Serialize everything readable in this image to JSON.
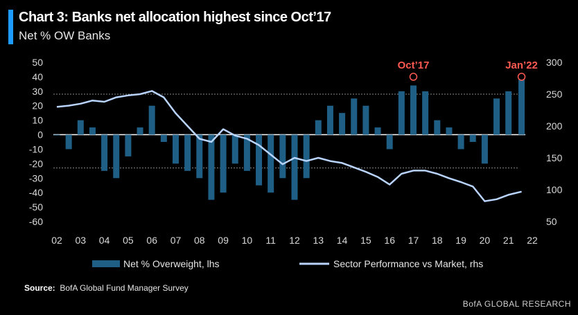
{
  "header": {
    "title": "Chart 3: Banks net allocation highest since Oct’17",
    "subtitle": "Net % OW Banks"
  },
  "footer": {
    "source_label": "Source:",
    "source_text": "BofA Global Fund Manager Survey",
    "brand": "BofA GLOBAL RESEARCH"
  },
  "colors": {
    "bars": "#1f5f86",
    "line": "#b9d4ff",
    "accent": "#1e9bff",
    "annotation": "#ff5a52"
  },
  "chart_data": {
    "type": "bar",
    "title": "Chart 3: Banks net allocation highest since Oct’17",
    "subtitle": "Net % OW Banks",
    "x_ticks": [
      "02",
      "03",
      "04",
      "05",
      "06",
      "07",
      "08",
      "09",
      "10",
      "11",
      "12",
      "13",
      "14",
      "15",
      "16",
      "17",
      "18",
      "19",
      "20",
      "21",
      "22"
    ],
    "x_range": [
      2002,
      2022
    ],
    "y_left": {
      "ticks": [
        50,
        40,
        30,
        20,
        10,
        0,
        -10,
        -20,
        -30,
        -40,
        -50,
        -60
      ],
      "lim": [
        -60,
        50
      ]
    },
    "y_right": {
      "ticks": [
        300,
        250,
        200,
        150,
        100,
        50
      ],
      "lim": [
        50,
        300
      ]
    },
    "reference_lines": {
      "upper": 28,
      "lower": -23,
      "zero": 0
    },
    "legend": [
      "Net % Overweight, lhs",
      "Sector Performance vs Market, rhs"
    ],
    "legend_position": "bottom",
    "annotations": [
      {
        "text": "Oct’17",
        "x": 2017.0,
        "y": 40
      },
      {
        "text": "Jan’22",
        "x": 2021.55,
        "y": 40
      }
    ],
    "series": [
      {
        "name": "Net % Overweight, lhs",
        "type": "bar",
        "axis": "left",
        "x": [
          2002.0,
          2002.5,
          2003.0,
          2003.5,
          2004.0,
          2004.5,
          2005.0,
          2005.5,
          2006.0,
          2006.5,
          2007.0,
          2007.5,
          2008.0,
          2008.5,
          2009.0,
          2009.5,
          2010.0,
          2010.5,
          2011.0,
          2011.5,
          2012.0,
          2012.5,
          2013.0,
          2013.5,
          2014.0,
          2014.5,
          2015.0,
          2015.5,
          2016.0,
          2016.5,
          2017.0,
          2017.5,
          2018.0,
          2018.5,
          2019.0,
          2019.5,
          2020.0,
          2020.5,
          2021.0,
          2021.55
        ],
        "values": [
          0,
          -10,
          10,
          5,
          -25,
          -30,
          -15,
          5,
          20,
          -5,
          -20,
          -25,
          -30,
          -45,
          -40,
          -20,
          -25,
          -35,
          -40,
          -30,
          -45,
          -30,
          10,
          20,
          15,
          25,
          20,
          5,
          -10,
          30,
          34,
          30,
          10,
          5,
          -10,
          -5,
          -20,
          25,
          30,
          38
        ]
      },
      {
        "name": "Sector Performance vs Market, rhs",
        "type": "line",
        "axis": "right",
        "x": [
          2002.0,
          2002.5,
          2003.0,
          2003.5,
          2004.0,
          2004.5,
          2005.0,
          2005.5,
          2006.0,
          2006.5,
          2007.0,
          2007.5,
          2008.0,
          2008.5,
          2009.0,
          2009.5,
          2010.0,
          2010.5,
          2011.0,
          2011.5,
          2012.0,
          2012.5,
          2013.0,
          2013.5,
          2014.0,
          2014.5,
          2015.0,
          2015.5,
          2016.0,
          2016.5,
          2017.0,
          2017.5,
          2018.0,
          2018.5,
          2019.0,
          2019.5,
          2020.0,
          2020.5,
          2021.0,
          2021.55
        ],
        "values": [
          230,
          232,
          235,
          240,
          238,
          245,
          248,
          250,
          255,
          245,
          220,
          200,
          180,
          175,
          195,
          185,
          180,
          170,
          155,
          140,
          150,
          145,
          150,
          145,
          142,
          135,
          128,
          120,
          108,
          125,
          130,
          130,
          125,
          118,
          112,
          105,
          82,
          85,
          92,
          97
        ]
      }
    ]
  }
}
